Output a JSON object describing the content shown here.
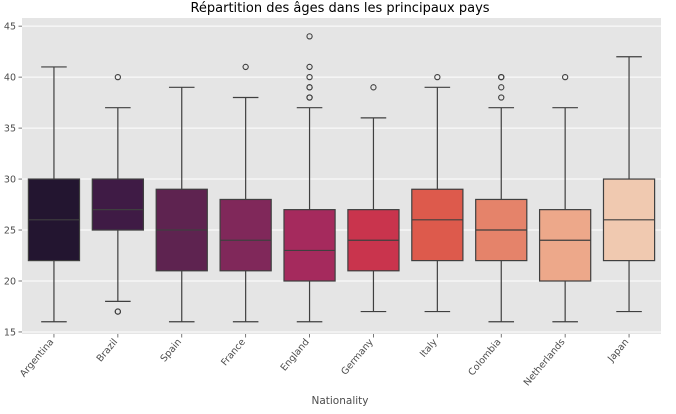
{
  "chart_data": {
    "type": "box",
    "title": "Répartition des âges dans les principaux pays",
    "xlabel": "Nationality",
    "ylabel": "",
    "ylim": [
      14.8,
      45.8
    ],
    "yticks": [
      15,
      20,
      25,
      30,
      35,
      40,
      45
    ],
    "grid": true,
    "categories": [
      "Argentina",
      "Brazil",
      "Spain",
      "France",
      "England",
      "Germany",
      "Italy",
      "Colombia",
      "Netherlands",
      "Japan"
    ],
    "boxes": [
      {
        "category": "Argentina",
        "whisker_low": 16,
        "q1": 22,
        "median": 26,
        "q3": 30,
        "whisker_high": 41,
        "outliers": [],
        "color": "#231530"
      },
      {
        "category": "Brazil",
        "whisker_low": 18,
        "q1": 25,
        "median": 27,
        "q3": 30,
        "whisker_high": 37,
        "outliers": [
          17,
          17,
          40
        ],
        "color": "#3f1b45"
      },
      {
        "category": "Spain",
        "whisker_low": 16,
        "q1": 21,
        "median": 25,
        "q3": 29,
        "whisker_high": 39,
        "outliers": [],
        "color": "#5e2350"
      },
      {
        "category": "France",
        "whisker_low": 16,
        "q1": 21,
        "median": 24,
        "q3": 28,
        "whisker_high": 38,
        "outliers": [
          41
        ],
        "color": "#80285a"
      },
      {
        "category": "England",
        "whisker_low": 16,
        "q1": 20,
        "median": 23,
        "q3": 27,
        "whisker_high": 37,
        "outliers": [
          38,
          38,
          39,
          39,
          40,
          41,
          44
        ],
        "color": "#a52a5d"
      },
      {
        "category": "Germany",
        "whisker_low": 17,
        "q1": 21,
        "median": 24,
        "q3": 27,
        "whisker_high": 36,
        "outliers": [
          39
        ],
        "color": "#c9344d"
      },
      {
        "category": "Italy",
        "whisker_low": 17,
        "q1": 22,
        "median": 26,
        "q3": 29,
        "whisker_high": 39,
        "outliers": [
          40
        ],
        "color": "#dd5a4c"
      },
      {
        "category": "Colombia",
        "whisker_low": 16,
        "q1": 22,
        "median": 25,
        "q3": 28,
        "whisker_high": 37,
        "outliers": [
          38,
          39,
          40,
          40
        ],
        "color": "#e5836a"
      },
      {
        "category": "Netherlands",
        "whisker_low": 16,
        "q1": 20,
        "median": 24,
        "q3": 27,
        "whisker_high": 37,
        "outliers": [
          40
        ],
        "color": "#eda88a"
      },
      {
        "category": "Japan",
        "whisker_low": 17,
        "q1": 22,
        "median": 26,
        "q3": 30,
        "whisker_high": 42,
        "outliers": [],
        "color": "#f0c9b0"
      }
    ],
    "colors": {
      "plot_background": "#e5e5e5",
      "grid": "#ffffff",
      "box_edge": "#3f3f3f"
    }
  }
}
